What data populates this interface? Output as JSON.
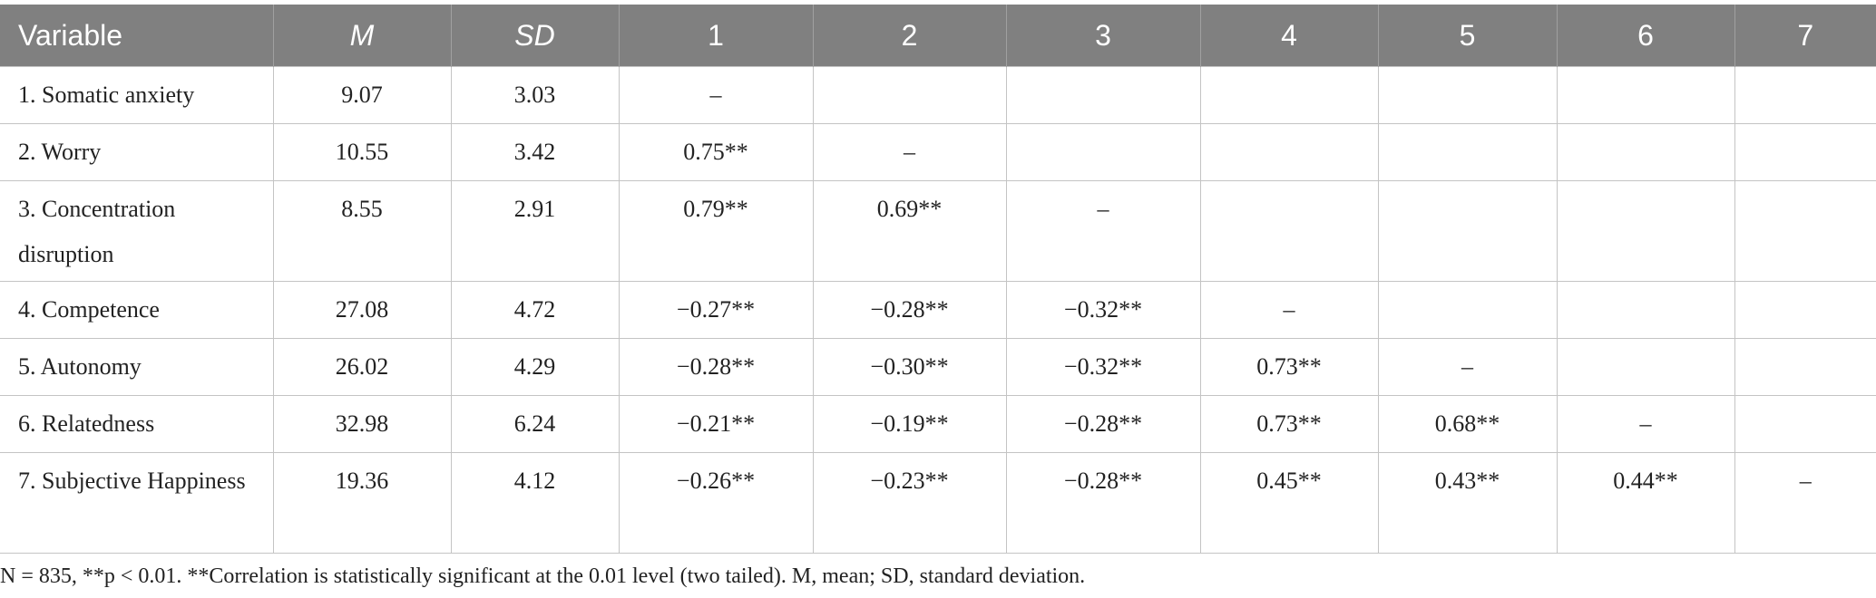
{
  "table": {
    "header": [
      "Variable",
      "M",
      "SD",
      "1",
      "2",
      "3",
      "4",
      "5",
      "6",
      "7"
    ],
    "rows": [
      [
        "1. Somatic anxiety",
        "9.07",
        "3.03",
        "–",
        null,
        null,
        null,
        null,
        null,
        null
      ],
      [
        "2. Worry",
        "10.55",
        "3.42",
        "0.75**",
        "–",
        null,
        null,
        null,
        null,
        null
      ],
      [
        "3. Concentration disruption",
        "8.55",
        "2.91",
        "0.79**",
        "0.69**",
        "–",
        null,
        null,
        null,
        null
      ],
      [
        "4. Competence",
        "27.08",
        "4.72",
        "−0.27**",
        "−0.28**",
        "−0.32**",
        "–",
        null,
        null,
        null
      ],
      [
        "5. Autonomy",
        "26.02",
        "4.29",
        "−0.28**",
        "−0.30**",
        "−0.32**",
        "0.73**",
        "–",
        null,
        null
      ],
      [
        "6. Relatedness",
        "32.98",
        "6.24",
        "−0.21**",
        "−0.19**",
        "−0.28**",
        "0.73**",
        "0.68**",
        "–",
        null
      ],
      [
        "7. Subjective Happiness",
        "19.36",
        "4.12",
        "−0.26**",
        "−0.23**",
        "−0.28**",
        "0.45**",
        "0.43**",
        "0.44**",
        "–"
      ]
    ],
    "footnote": "N = 835, **p < 0.01. **Correlation is statistically significant at the 0.01 level (two tailed). M, mean; SD, standard deviation."
  }
}
